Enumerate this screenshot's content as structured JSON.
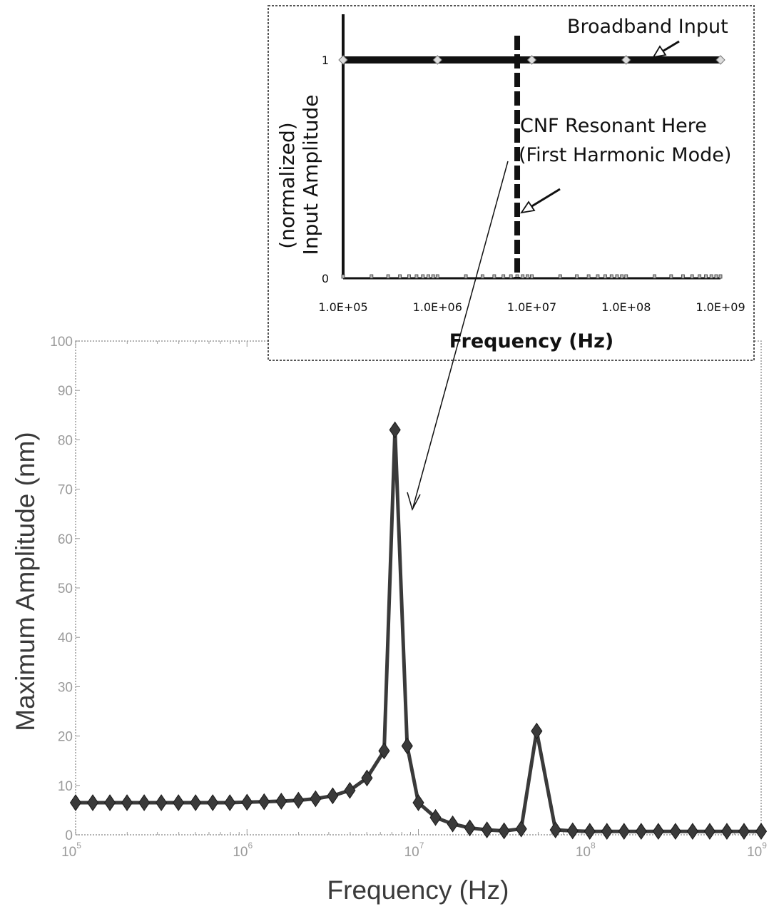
{
  "chart_data": [
    {
      "type": "line",
      "xlabel": "Frequency (Hz)",
      "ylabel": "Maximum Amplitude (nm)",
      "xscale": "log",
      "xlim": [
        100000,
        1000000000
      ],
      "ylim": [
        0,
        100
      ],
      "x_tick_labels": [
        {
          "base": "10",
          "exp": "5"
        },
        {
          "base": "10",
          "exp": "6"
        },
        {
          "base": "10",
          "exp": "7"
        },
        {
          "base": "10",
          "exp": "8"
        },
        {
          "base": "10",
          "exp": "9"
        }
      ],
      "y_tick_labels": [
        "0",
        "10",
        "20",
        "30",
        "40",
        "50",
        "60",
        "70",
        "80",
        "90",
        "100"
      ],
      "grid": false,
      "series": [
        {
          "marker": "diamond",
          "color": "#3a3a3a",
          "points": [
            [
              100000,
              6.5
            ],
            [
              125900,
              6.5
            ],
            [
              158500,
              6.5
            ],
            [
              199500,
              6.5
            ],
            [
              251200,
              6.5
            ],
            [
              316200,
              6.5
            ],
            [
              398100,
              6.5
            ],
            [
              501200,
              6.5
            ],
            [
              631000,
              6.5
            ],
            [
              794300,
              6.5
            ],
            [
              1000000,
              6.6
            ],
            [
              1259000,
              6.7
            ],
            [
              1585000,
              6.8
            ],
            [
              1995000,
              7.0
            ],
            [
              2512000,
              7.3
            ],
            [
              3162000,
              7.9
            ],
            [
              3981000,
              9.0
            ],
            [
              5012000,
              11.5
            ],
            [
              6310000,
              17.0
            ],
            [
              7300000,
              82.0
            ],
            [
              8600000,
              18.0
            ],
            [
              10000000,
              6.5
            ],
            [
              12590000,
              3.5
            ],
            [
              15850000,
              2.2
            ],
            [
              19950000,
              1.4
            ],
            [
              25120000,
              1.0
            ],
            [
              31620000,
              0.8
            ],
            [
              39810000,
              1.2
            ],
            [
              49000000,
              21.0
            ],
            [
              63100000,
              1.0
            ],
            [
              79430000,
              0.8
            ],
            [
              100000000,
              0.7
            ],
            [
              125900000,
              0.7
            ],
            [
              158500000,
              0.7
            ],
            [
              199500000,
              0.7
            ],
            [
              251200000,
              0.7
            ],
            [
              316200000,
              0.7
            ],
            [
              398100000,
              0.7
            ],
            [
              501200000,
              0.7
            ],
            [
              631000000,
              0.7
            ],
            [
              794300000,
              0.7
            ],
            [
              1000000000,
              0.7
            ]
          ]
        }
      ]
    },
    {
      "type": "line",
      "xlabel": "Frequency (Hz)",
      "ylabel_lines": [
        "(normalized)",
        "Input Amplitude"
      ],
      "xscale": "log",
      "xlim": [
        100000,
        1000000000
      ],
      "ylim": [
        0,
        1
      ],
      "x_tick_labels": [
        "1.0E+05",
        "1.0E+06",
        "1.0E+07",
        "1.0E+08",
        "1.0E+09"
      ],
      "y_tick_labels": [
        "0",
        "1"
      ],
      "series": [
        {
          "name": "Broadband Input",
          "color": "#111111",
          "points": [
            [
              100000,
              1
            ],
            [
              1000000,
              1
            ],
            [
              10000000,
              1
            ],
            [
              100000000,
              1
            ],
            [
              1000000000,
              1
            ]
          ],
          "x_max": 1000000000,
          "y": 1
        }
      ],
      "baseline_ticks": [
        100000,
        200000,
        300000,
        400000,
        500000,
        600000,
        700000,
        800000,
        900000,
        1000000,
        2000000,
        3000000,
        4000000,
        5000000,
        6000000,
        7000000,
        8000000,
        9000000,
        10000000,
        20000000,
        30000000,
        40000000,
        50000000,
        60000000,
        70000000,
        80000000,
        90000000,
        100000000,
        200000000,
        300000000,
        400000000,
        500000000,
        600000000,
        700000000,
        800000000,
        900000000,
        1000000000
      ],
      "resonance_marker_x": 7000000,
      "annotations": {
        "broadband": "Broadband Input",
        "resonant_line1": "CNF Resonant Here",
        "resonant_line2": "(First Harmonic Mode)"
      }
    }
  ]
}
